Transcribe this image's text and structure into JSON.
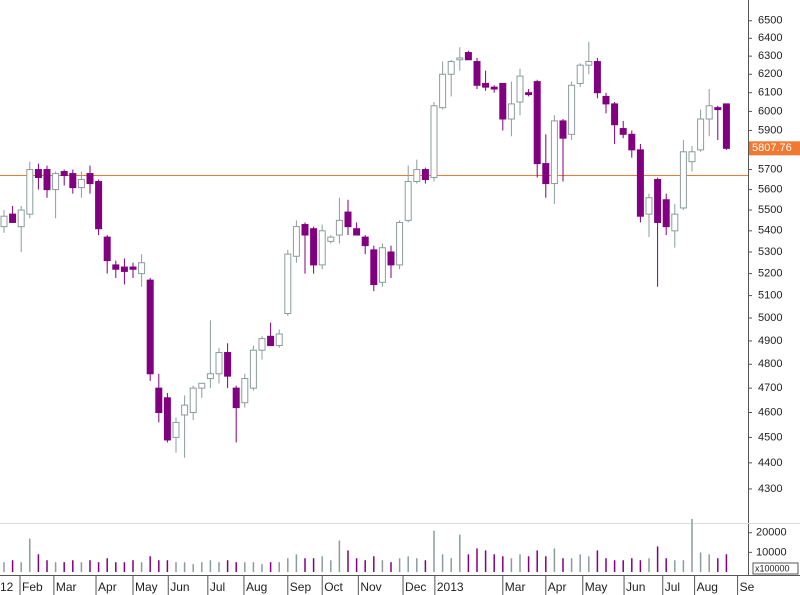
{
  "chart_data": {
    "type": "candlestick",
    "log_scale": true,
    "ylim": [
      4180,
      6620
    ],
    "yticks": [
      4300,
      4400,
      4500,
      4600,
      4700,
      4800,
      4900,
      5000,
      5100,
      5200,
      5300,
      5400,
      5500,
      5600,
      5700,
      5800,
      5900,
      6000,
      6100,
      6200,
      6300,
      6400,
      6500
    ],
    "xticks": [
      {
        "value": -0.7,
        "label": "12"
      },
      {
        "value": 1.86,
        "label": "Feb"
      },
      {
        "value": 5.8,
        "label": "Mar"
      },
      {
        "value": 10.7,
        "label": "Apr"
      },
      {
        "value": 15,
        "label": "May"
      },
      {
        "value": 19.1,
        "label": "Jun"
      },
      {
        "value": 23.7,
        "label": "Jul"
      },
      {
        "value": 27.9,
        "label": "Aug"
      },
      {
        "value": 33,
        "label": "Sep"
      },
      {
        "value": 37,
        "label": "Oct"
      },
      {
        "value": 41.2,
        "label": "Nov"
      },
      {
        "value": 46.4,
        "label": "Dec"
      },
      {
        "value": 50.1,
        "label": "2013"
      },
      {
        "value": 58,
        "label": "Mar"
      },
      {
        "value": 63,
        "label": "Apr"
      },
      {
        "value": 67.3,
        "label": "May"
      },
      {
        "value": 72.1,
        "label": "Jun"
      },
      {
        "value": 76.6,
        "label": "Jul"
      },
      {
        "value": 80.3,
        "label": "Aug"
      },
      {
        "value": 85.3,
        "label": "Se"
      }
    ],
    "open": [
      5420,
      5480,
      5420,
      5480,
      5700,
      5700,
      5600,
      5690,
      5680,
      5610,
      5680,
      5640,
      5370,
      5240,
      5230,
      5230,
      5200,
      5170,
      4700,
      4660,
      4500,
      4590,
      4600,
      4700,
      4740,
      4760,
      4850,
      4700,
      4640,
      4700,
      4860,
      4920,
      4880,
      5020,
      5280,
      5430,
      5410,
      5240,
      5350,
      5380,
      5490,
      5410,
      5370,
      5310,
      5160,
      5300,
      5240,
      5450,
      5640,
      5700,
      5660,
      6020,
      6200,
      6280,
      6320,
      6270,
      6150,
      6130,
      6150,
      5960,
      6050,
      6100,
      6160,
      5730,
      5630,
      5950,
      5880,
      6150,
      6250,
      6270,
      6080,
      6040,
      5910,
      5880,
      5800,
      5480,
      5650,
      5550,
      5400,
      5510,
      5740,
      5800,
      5960,
      6020,
      6040
    ],
    "high": [
      5500,
      5520,
      5520,
      5740,
      5730,
      5720,
      5690,
      5700,
      5700,
      5690,
      5720,
      5650,
      5380,
      5260,
      5270,
      5250,
      5290,
      5180,
      4760,
      4680,
      4580,
      4670,
      4710,
      4720,
      4990,
      4870,
      4890,
      4710,
      4760,
      4880,
      4920,
      4980,
      4950,
      5310,
      5450,
      5440,
      5420,
      5430,
      5380,
      5560,
      5550,
      5440,
      5380,
      5330,
      5340,
      5330,
      5450,
      5720,
      5750,
      5710,
      6050,
      6270,
      6280,
      6350,
      6330,
      6290,
      6220,
      6140,
      6150,
      6160,
      6230,
      6120,
      6170,
      5880,
      5980,
      5960,
      6160,
      6260,
      6380,
      6290,
      6100,
      6050,
      5950,
      5900,
      5830,
      5580,
      5660,
      5580,
      5530,
      5850,
      5820,
      6010,
      6120,
      6030,
      6040
    ],
    "low": [
      5390,
      5440,
      5300,
      5460,
      5600,
      5560,
      5460,
      5620,
      5580,
      5560,
      5580,
      5380,
      5200,
      5180,
      5150,
      5180,
      5140,
      4730,
      4560,
      4480,
      4440,
      4420,
      4570,
      4660,
      4700,
      4720,
      4700,
      4480,
      4620,
      4690,
      4820,
      4880,
      4870,
      5010,
      5250,
      5200,
      5200,
      5220,
      5340,
      5340,
      5380,
      5380,
      5290,
      5120,
      5140,
      5180,
      5220,
      5440,
      5630,
      5630,
      5640,
      6010,
      6080,
      6220,
      6290,
      6120,
      6110,
      6100,
      5900,
      5870,
      5980,
      6080,
      5660,
      5560,
      5530,
      5640,
      5850,
      6130,
      6200,
      6070,
      5990,
      5830,
      5860,
      5760,
      5440,
      5370,
      5140,
      5380,
      5320,
      5500,
      5690,
      5790,
      5870,
      5850,
      5800
    ],
    "close": [
      5470,
      5440,
      5500,
      5700,
      5660,
      5600,
      5680,
      5670,
      5610,
      5650,
      5630,
      5410,
      5260,
      5220,
      5210,
      5220,
      5250,
      4760,
      4600,
      4490,
      4560,
      4630,
      4700,
      4720,
      4760,
      4850,
      4750,
      4620,
      4740,
      4860,
      4910,
      4880,
      4930,
      5290,
      5420,
      5380,
      5240,
      5400,
      5370,
      5450,
      5420,
      5380,
      5330,
      5150,
      5320,
      5240,
      5440,
      5640,
      5700,
      5650,
      6030,
      6200,
      6270,
      6290,
      6280,
      6140,
      6130,
      6120,
      5960,
      6040,
      6190,
      6090,
      5730,
      5630,
      5950,
      5860,
      6140,
      6250,
      6270,
      6100,
      6040,
      5930,
      5880,
      5800,
      5470,
      5560,
      5440,
      5420,
      5480,
      5790,
      5790,
      5960,
      6030,
      6010,
      5807.76
    ],
    "volume": [
      5000,
      6000,
      5000,
      17000,
      9000,
      6000,
      5000,
      5000,
      6000,
      5000,
      6000,
      5000,
      7000,
      5000,
      5000,
      6000,
      5000,
      8000,
      6000,
      6000,
      5000,
      5000,
      4000,
      5000,
      6000,
      5000,
      6000,
      5000,
      5000,
      5000,
      4000,
      5000,
      5000,
      7000,
      9000,
      7000,
      7000,
      8000,
      6000,
      16000,
      11000,
      7000,
      6000,
      8000,
      6000,
      5000,
      7000,
      8000,
      7000,
      6000,
      21000,
      9000,
      7000,
      19000,
      9000,
      12000,
      11000,
      9000,
      8000,
      7000,
      9000,
      8000,
      11000,
      8000,
      12000,
      7000,
      7000,
      9000,
      8000,
      11000,
      7000,
      6000,
      6000,
      7000,
      6000,
      7000,
      13000,
      7000,
      6000,
      6000,
      27000,
      10000,
      9000,
      7000,
      9000
    ],
    "volume_ylim": [
      0,
      28000
    ],
    "volume_yticks": [
      10000,
      20000
    ],
    "volume_unit": "x100000",
    "hline": 5670,
    "hline_color": "#f07830",
    "up_color": "#ffffff",
    "down_color": "#800080",
    "outline_color": "#8c9c9c"
  }
}
